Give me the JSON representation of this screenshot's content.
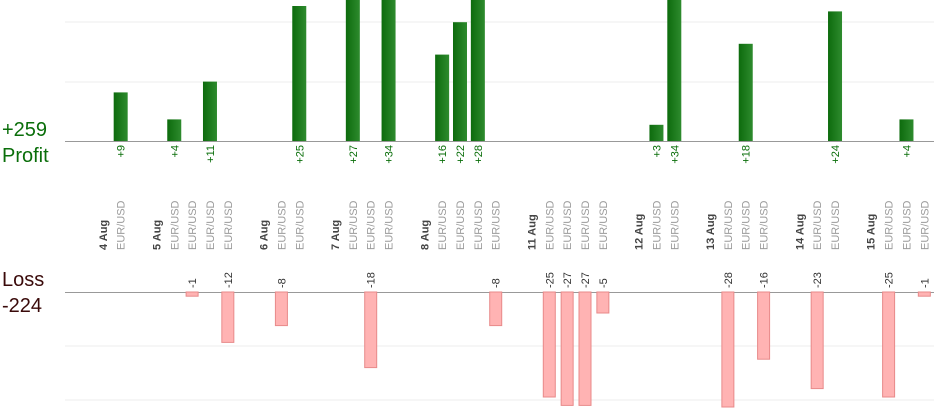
{
  "summary": {
    "profit_total": "+259",
    "profit_label": "Profit",
    "loss_label": "Loss",
    "loss_total": "-224"
  },
  "colors": {
    "profit_bar": "#0d6b0d",
    "profit_bar_light": "#2e8b2e",
    "profit_text": "#0a6e0a",
    "loss_bar": "#ffb3b3",
    "loss_bar_border": "#e88a8a",
    "loss_text": "#333333",
    "day_text": "#444444",
    "pair_text": "#9a9a9a",
    "grid": "#ececec",
    "axis": "#999999"
  },
  "chart_data": {
    "type": "bar",
    "title": "",
    "pair": "EUR/USD",
    "days": [
      "4 Aug",
      "5 Aug",
      "6 Aug",
      "7 Aug",
      "8 Aug",
      "11 Aug",
      "12 Aug",
      "13 Aug",
      "14 Aug",
      "15 Aug"
    ],
    "trades": [
      {
        "day": "4 Aug",
        "pair": "EUR/USD",
        "result": 9,
        "label": "+9"
      },
      {
        "day": "5 Aug",
        "pair": "EUR/USD",
        "result": 4,
        "label": "+4"
      },
      {
        "day": "5 Aug",
        "pair": "EUR/USD",
        "result": -1,
        "label": "-1"
      },
      {
        "day": "5 Aug",
        "pair": "EUR/USD",
        "result": 11,
        "label": "+11"
      },
      {
        "day": "5 Aug",
        "pair": "EUR/USD",
        "result": -12,
        "label": "-12"
      },
      {
        "day": "6 Aug",
        "pair": "EUR/USD",
        "result": -8,
        "label": "-8"
      },
      {
        "day": "6 Aug",
        "pair": "EUR/USD",
        "result": 25,
        "label": "+25"
      },
      {
        "day": "7 Aug",
        "pair": "EUR/USD",
        "result": 27,
        "label": "+27"
      },
      {
        "day": "7 Aug",
        "pair": "EUR/USD",
        "result": -18,
        "label": "-18"
      },
      {
        "day": "7 Aug",
        "pair": "EUR/USD",
        "result": 34,
        "label": "+34"
      },
      {
        "day": "8 Aug",
        "pair": "EUR/USD",
        "result": 16,
        "label": "+16"
      },
      {
        "day": "8 Aug",
        "pair": "EUR/USD",
        "result": 22,
        "label": "+22"
      },
      {
        "day": "8 Aug",
        "pair": "EUR/USD",
        "result": 28,
        "label": "+28"
      },
      {
        "day": "8 Aug",
        "pair": "EUR/USD",
        "result": -8,
        "label": "-8"
      },
      {
        "day": "11 Aug",
        "pair": "EUR/USD",
        "result": -25,
        "label": "-25"
      },
      {
        "day": "11 Aug",
        "pair": "EUR/USD",
        "result": -27,
        "label": "-27"
      },
      {
        "day": "11 Aug",
        "pair": "EUR/USD",
        "result": -27,
        "label": "-27"
      },
      {
        "day": "11 Aug",
        "pair": "EUR/USD",
        "result": -5,
        "label": "-5"
      },
      {
        "day": "12 Aug",
        "pair": "EUR/USD",
        "result": 3,
        "label": "+3"
      },
      {
        "day": "12 Aug",
        "pair": "EUR/USD",
        "result": 34,
        "label": "+34"
      },
      {
        "day": "13 Aug",
        "pair": "EUR/USD",
        "result": -28,
        "label": "-28"
      },
      {
        "day": "13 Aug",
        "pair": "EUR/USD",
        "result": 18,
        "label": "+18"
      },
      {
        "day": "13 Aug",
        "pair": "EUR/USD",
        "result": -16,
        "label": "-16"
      },
      {
        "day": "14 Aug",
        "pair": "EUR/USD",
        "result": -23,
        "label": "-23"
      },
      {
        "day": "14 Aug",
        "pair": "EUR/USD",
        "result": 24,
        "label": "+24"
      },
      {
        "day": "15 Aug",
        "pair": "EUR/USD",
        "result": -25,
        "label": "-25"
      },
      {
        "day": "15 Aug",
        "pair": "EUR/USD",
        "result": 4,
        "label": "+4"
      },
      {
        "day": "15 Aug",
        "pair": "EUR/USD",
        "result": -1,
        "label": "-1"
      }
    ],
    "profit_ylim": [
      0,
      25
    ],
    "loss_ylim": [
      -25,
      0
    ],
    "grid": true,
    "legend": "none"
  }
}
